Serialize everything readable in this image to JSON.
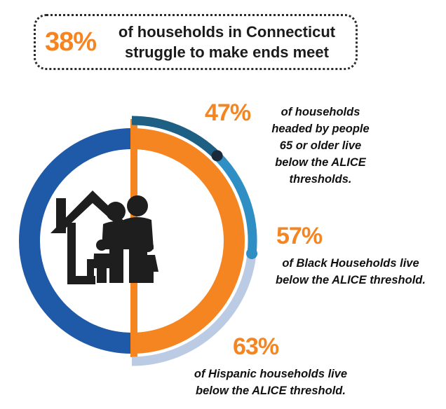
{
  "headline": {
    "percent": "38%",
    "text_line1": "of households in Connecticut",
    "text_line2": "struggle to make ends meet"
  },
  "stats": [
    {
      "percent": "47%",
      "lines": [
        "of households",
        "headed by people",
        "65 or older live",
        "below the ALICE",
        "thresholds."
      ]
    },
    {
      "percent": "57%",
      "lines": [
        "of Black Households live",
        "below the ALICE threshold."
      ]
    },
    {
      "percent": "63%",
      "lines": [
        "of Hispanic households live",
        "below the ALICE threshold."
      ]
    }
  ],
  "chart_data": {
    "type": "radial",
    "values": [
      38,
      47,
      57,
      63
    ],
    "colors": {
      "outer_ring": "#1f5aa8",
      "inner_ring": "#f48521",
      "arc_65_older": "#1e5f84",
      "arc_black": "#2f8fc4",
      "arc_hispanic": "#bccbe4",
      "marker": "#1a2a3a",
      "icon": "#1e1e1e"
    },
    "icons": [
      "house-icon",
      "family-icon"
    ]
  }
}
